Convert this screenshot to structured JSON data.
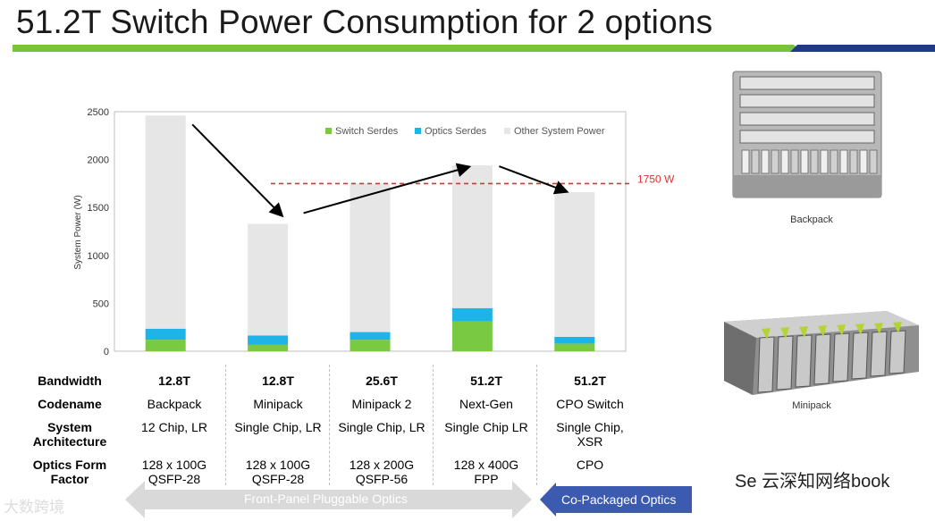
{
  "title": "51.2T Switch Power Consumption for 2 options",
  "colors": {
    "switch": "#7ac943",
    "optics": "#1eb4e8",
    "other": "#e6e6e6",
    "threshold": "#e03030",
    "green_rule": "#78c33a",
    "navy_rule": "#1f3a8a",
    "blue_arrow": "#3c5ab0",
    "grey_arrow": "#d9d9d9"
  },
  "chart_data": {
    "type": "bar",
    "stacked": true,
    "ylabel": "System Power (W)",
    "ylim": [
      0,
      2500
    ],
    "yticks": [
      0,
      500,
      1000,
      1500,
      2000,
      2500
    ],
    "categories": [
      "Backpack",
      "Minipack",
      "Minipack 2",
      "Next-Gen",
      "CPO Switch"
    ],
    "series": [
      {
        "name": "Switch Serdes",
        "values": [
          120,
          70,
          120,
          310,
          80
        ]
      },
      {
        "name": "Optics Serdes",
        "values": [
          115,
          95,
          80,
          140,
          70
        ]
      },
      {
        "name": "Other System Power",
        "values": [
          2225,
          1165,
          1550,
          1490,
          1510
        ]
      }
    ],
    "totals": [
      2460,
      1330,
      1750,
      1940,
      1660
    ],
    "threshold": {
      "value": 1750,
      "label": "1750 W"
    },
    "legend_position": "top-right"
  },
  "table": {
    "row_labels": [
      {
        "line1": "Bandwidth",
        "line2": ""
      },
      {
        "line1": "Codename",
        "line2": ""
      },
      {
        "line1": "System",
        "line2": "Architecture"
      },
      {
        "line1": "Optics Form",
        "line2": "Factor"
      }
    ],
    "columns": [
      {
        "bandwidth": "12.8T",
        "codename": "Backpack",
        "arch1": "12 Chip, LR",
        "arch2": "",
        "optics1": "128 x 100G",
        "optics2": "QSFP-28"
      },
      {
        "bandwidth": "12.8T",
        "codename": "Minipack",
        "arch1": "Single Chip, LR",
        "arch2": "",
        "optics1": "128 x 100G",
        "optics2": "QSFP-28"
      },
      {
        "bandwidth": "25.6T",
        "codename": "Minipack 2",
        "arch1": "Single Chip, LR",
        "arch2": "",
        "optics1": "128 x 200G",
        "optics2": "QSFP-56"
      },
      {
        "bandwidth": "51.2T",
        "codename": "Next-Gen",
        "arch1": "Single Chip LR",
        "arch2": "",
        "optics1": "128 x 400G",
        "optics2": "FPP"
      },
      {
        "bandwidth": "51.2T",
        "codename": "CPO Switch",
        "arch1": "Single Chip,",
        "arch2": "XSR",
        "optics1": "CPO",
        "optics2": ""
      }
    ]
  },
  "arrows": {
    "pluggable": "Front-Panel Pluggable Optics",
    "cpo": "Co-Packaged Optics"
  },
  "photos": {
    "backpack_caption": "Backpack",
    "minipack_caption": "Minipack"
  },
  "watermarks": {
    "right": "Se  云深知网络book",
    "left": "大数跨境"
  }
}
